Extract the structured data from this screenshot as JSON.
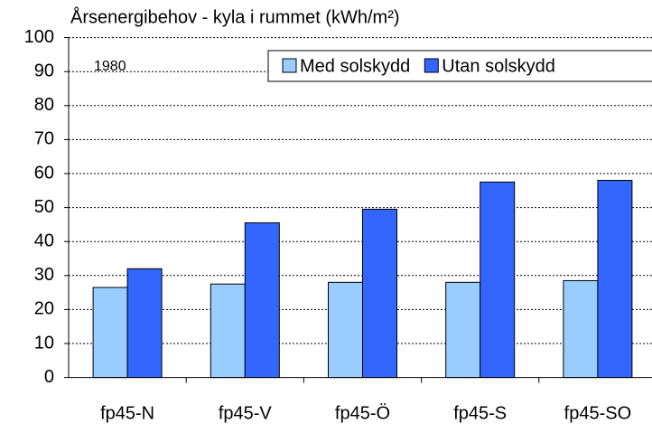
{
  "chart_data": {
    "type": "bar",
    "title": "Årsenergibehov - kyla i rummet (kWh/m²)",
    "annotation": "1980",
    "categories": [
      "fp45-N",
      "fp45-V",
      "fp45-Ö",
      "fp45-S",
      "fp45-SO"
    ],
    "series": [
      {
        "name": "Med solskydd",
        "color": "#99ccff",
        "values": [
          26.5,
          27.5,
          28,
          28,
          28.5
        ]
      },
      {
        "name": "Utan solskydd",
        "color": "#3366ff",
        "values": [
          32,
          45.5,
          49.5,
          57.5,
          58
        ]
      }
    ],
    "ylim": [
      0,
      100
    ],
    "yticks": [
      0,
      10,
      20,
      30,
      40,
      50,
      60,
      70,
      80,
      90,
      100
    ],
    "grid": true,
    "legend": "upper right"
  }
}
